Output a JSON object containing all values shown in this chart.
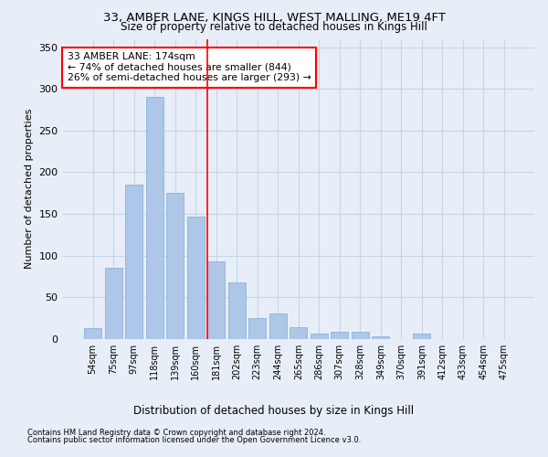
{
  "title1": "33, AMBER LANE, KINGS HILL, WEST MALLING, ME19 4FT",
  "title2": "Size of property relative to detached houses in Kings Hill",
  "xlabel": "Distribution of detached houses by size in Kings Hill",
  "ylabel": "Number of detached properties",
  "categories": [
    "54sqm",
    "75sqm",
    "97sqm",
    "118sqm",
    "139sqm",
    "160sqm",
    "181sqm",
    "202sqm",
    "223sqm",
    "244sqm",
    "265sqm",
    "286sqm",
    "307sqm",
    "328sqm",
    "349sqm",
    "370sqm",
    "391sqm",
    "412sqm",
    "433sqm",
    "454sqm",
    "475sqm"
  ],
  "values": [
    13,
    85,
    185,
    290,
    175,
    147,
    93,
    68,
    25,
    30,
    14,
    6,
    8,
    9,
    3,
    0,
    6,
    0,
    0,
    0,
    0
  ],
  "bar_color": "#aec6e8",
  "bar_edgecolor": "#7aadd4",
  "grid_color": "#c8d4e8",
  "background_color": "#e8eef8",
  "vline_color": "red",
  "vline_x": 5.55,
  "annotation_text": "33 AMBER LANE: 174sqm\n← 74% of detached houses are smaller (844)\n26% of semi-detached houses are larger (293) →",
  "annotation_box_color": "white",
  "annotation_box_edgecolor": "red",
  "ylim": [
    0,
    360
  ],
  "yticks": [
    0,
    50,
    100,
    150,
    200,
    250,
    300,
    350
  ],
  "footnote1": "Contains HM Land Registry data © Crown copyright and database right 2024.",
  "footnote2": "Contains public sector information licensed under the Open Government Licence v3.0."
}
